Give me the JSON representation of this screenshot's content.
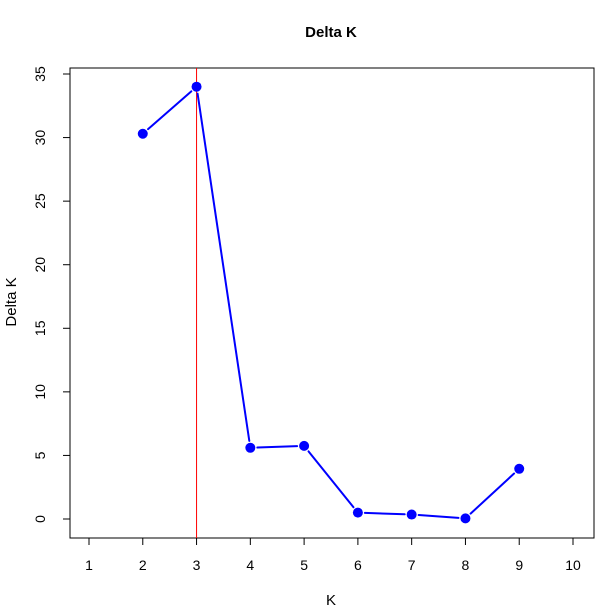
{
  "chart_data": {
    "type": "line",
    "title": "Delta K",
    "xlabel": "K",
    "ylabel": "Delta K",
    "x": [
      2,
      3,
      4,
      5,
      6,
      7,
      8,
      9
    ],
    "series": [
      {
        "values": [
          30.3,
          34.0,
          5.6,
          5.75,
          0.5,
          0.35,
          0.05,
          3.95
        ],
        "color": "#0000ff"
      }
    ],
    "xlim": [
      1,
      10
    ],
    "ylim": [
      0,
      35
    ],
    "x_ticks": [
      1,
      2,
      3,
      4,
      5,
      6,
      7,
      8,
      9,
      10
    ],
    "y_ticks": [
      0,
      5,
      10,
      15,
      20,
      25,
      30,
      35
    ],
    "reference_line": {
      "orientation": "vertical",
      "x": 3,
      "color": "#ff0000"
    },
    "grid": false,
    "legend": "none"
  }
}
